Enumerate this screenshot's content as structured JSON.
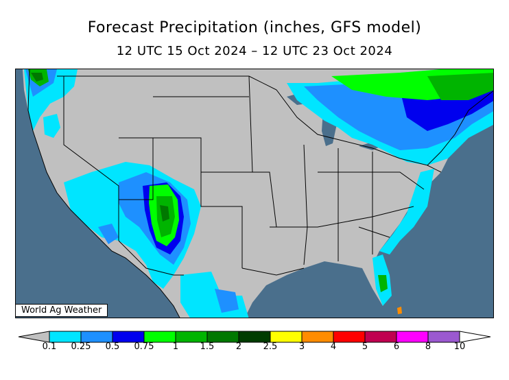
{
  "title": "Forecast Precipitation (inches, GFS model)",
  "subtitle": "12 UTC 15 Oct 2024 – 12 UTC 23 Oct 2024",
  "credit": "World Ag Weather",
  "legend": {
    "levels": [
      "0.1",
      "0.25",
      "0.5",
      "0.75",
      "1",
      "1.5",
      "2",
      "2.5",
      "3",
      "4",
      "5",
      "6",
      "8",
      "10"
    ],
    "colors": [
      "#00e5ff",
      "#1e90ff",
      "#0000ee",
      "#00ff00",
      "#00b400",
      "#007800",
      "#003c00",
      "#ffff00",
      "#ff8c00",
      "#ff0000",
      "#c00050",
      "#ff00ff",
      "#9b59d0"
    ],
    "under_color": "#c0c0c0",
    "over_color": "#ffffff"
  },
  "map_colors": {
    "ocean": "#4a6f8c",
    "land": "#c0c0c0",
    "lake": "#4a6f8c"
  }
}
